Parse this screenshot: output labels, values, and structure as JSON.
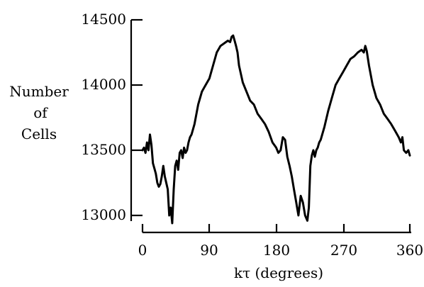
{
  "chart_data": {
    "type": "line",
    "title": "",
    "xlabel": "kτ (degrees)",
    "ylabel": [
      "Number",
      "of",
      "Cells"
    ],
    "xlim": [
      0,
      360
    ],
    "ylim": [
      13000,
      14500
    ],
    "xticks": [
      "0",
      "90",
      "180",
      "270",
      "360"
    ],
    "xtick_values": [
      0,
      90,
      180,
      270,
      360
    ],
    "yticks": [
      "14500",
      "14000",
      "13500",
      "13000"
    ],
    "ytick_values": [
      14500,
      14000,
      13500,
      13000
    ],
    "grid": false,
    "line_color": "#000000",
    "series": [
      {
        "x": [
          0,
          2,
          4,
          6,
          8,
          10,
          12,
          14,
          16,
          18,
          20,
          22,
          24,
          26,
          28,
          30,
          32,
          34,
          36,
          38,
          40,
          42,
          44,
          46,
          48,
          50,
          52,
          54,
          56,
          58,
          60,
          62,
          64,
          66,
          68,
          70,
          75,
          80,
          85,
          90,
          95,
          100,
          105,
          110,
          115,
          118,
          120,
          122,
          124,
          126,
          128,
          130,
          135,
          140,
          145,
          150,
          155,
          160,
          165,
          170,
          175,
          180,
          183,
          186,
          189,
          192,
          195,
          198,
          201,
          204,
          207,
          210,
          213,
          216,
          219,
          222,
          224,
          226,
          228,
          230,
          232,
          234,
          236,
          238,
          240,
          245,
          250,
          255,
          260,
          265,
          270,
          275,
          280,
          285,
          290,
          295,
          298,
          300,
          302,
          305,
          310,
          315,
          320,
          325,
          330,
          335,
          340,
          345,
          348,
          350,
          352,
          355,
          358,
          360
        ],
        "y": [
          13500,
          13520,
          13480,
          13560,
          13500,
          13620,
          13540,
          13400,
          13360,
          13320,
          13250,
          13220,
          13240,
          13300,
          13380,
          13300,
          13250,
          13200,
          13000,
          13060,
          12940,
          13200,
          13380,
          13420,
          13350,
          13480,
          13500,
          13440,
          13520,
          13480,
          13500,
          13560,
          13600,
          13620,
          13660,
          13700,
          13850,
          13950,
          14000,
          14050,
          14150,
          14250,
          14300,
          14320,
          14340,
          14330,
          14370,
          14380,
          14340,
          14300,
          14250,
          14150,
          14020,
          13950,
          13880,
          13850,
          13780,
          13740,
          13700,
          13640,
          13560,
          13520,
          13480,
          13500,
          13600,
          13580,
          13450,
          13380,
          13300,
          13200,
          13100,
          13000,
          13150,
          13100,
          13000,
          12960,
          13060,
          13380,
          13460,
          13500,
          13450,
          13500,
          13520,
          13560,
          13580,
          13680,
          13800,
          13900,
          14000,
          14050,
          14100,
          14150,
          14200,
          14220,
          14250,
          14270,
          14250,
          14300,
          14260,
          14150,
          14000,
          13900,
          13850,
          13780,
          13740,
          13700,
          13650,
          13600,
          13560,
          13600,
          13500,
          13480,
          13500,
          13460
        ]
      }
    ]
  }
}
